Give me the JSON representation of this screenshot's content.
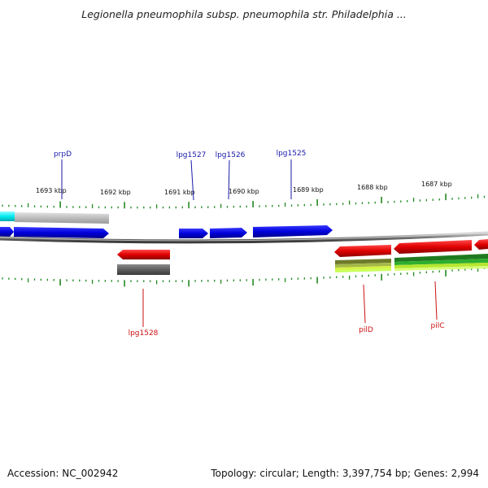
{
  "title": "Legionella pneumophila subsp. pneumophila str. Philadelphia ...",
  "footer": {
    "accession": "Accession: NC_002942",
    "topology": "Topology: circular; Length: 3,397,754 bp; Genes: 2,994"
  },
  "scale_labels": [
    "1693 kbp",
    "1692 kbp",
    "1691 kbp",
    "1690 kbp",
    "1689 kbp",
    "1688 kbp",
    "1687 kbp"
  ],
  "gene_labels": {
    "top": [
      "prpD",
      "lpg1527",
      "lpg1526",
      "lpg1525"
    ],
    "bottom": [
      "lpg1528",
      "pilD",
      "pilC"
    ]
  },
  "colors": {
    "forward_strand": "#0000ee",
    "reverse_strand": "#ee0000",
    "forward_label": "#1a1aaa",
    "reverse_label": "#cc1111",
    "tick": "#228822",
    "backbone": "#808080"
  }
}
